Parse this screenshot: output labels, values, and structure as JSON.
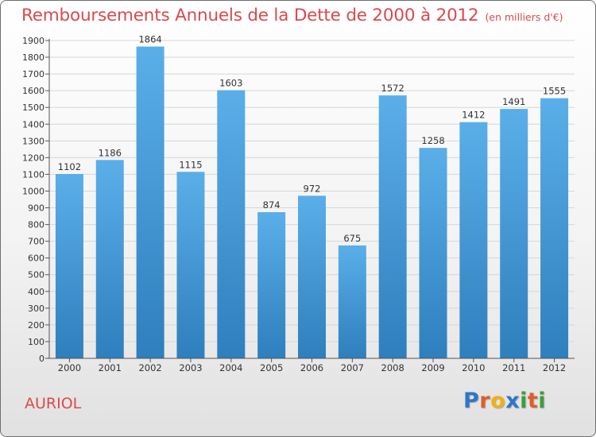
{
  "title": "Remboursements Annuels de la Dette de 2000 à 2012",
  "subtitle": "(en milliers d'€)",
  "place": "AURIOL",
  "logo": {
    "text": "Proxiti",
    "letters": [
      {
        "char": "P",
        "color": "#2f76c9"
      },
      {
        "char": "r",
        "color": "#e05d2b"
      },
      {
        "char": "o",
        "color": "#f2b014"
      },
      {
        "char": "x",
        "color": "#2f76c9"
      },
      {
        "char": "i",
        "color": "#3a9f3a"
      },
      {
        "char": "t",
        "color": "#e05d2b"
      },
      {
        "char": "i",
        "color": "#3a9f3a"
      }
    ]
  },
  "colors": {
    "title": "#d94a4e",
    "bar_top": "#5aafe9",
    "bar_bottom": "#2e7fbd",
    "grid": "#d6d6d6",
    "axis": "#555555",
    "text": "#333333"
  },
  "chart_data": {
    "type": "bar",
    "categories": [
      "2000",
      "2001",
      "2002",
      "2003",
      "2004",
      "2005",
      "2006",
      "2007",
      "2008",
      "2009",
      "2010",
      "2011",
      "2012"
    ],
    "values": [
      1102,
      1186,
      1864,
      1115,
      1603,
      874,
      972,
      675,
      1572,
      1258,
      1412,
      1491,
      1555
    ],
    "ylim": [
      0,
      1900
    ],
    "ytick_step": 100,
    "grid": true,
    "legend": "none",
    "data_labels": true
  }
}
